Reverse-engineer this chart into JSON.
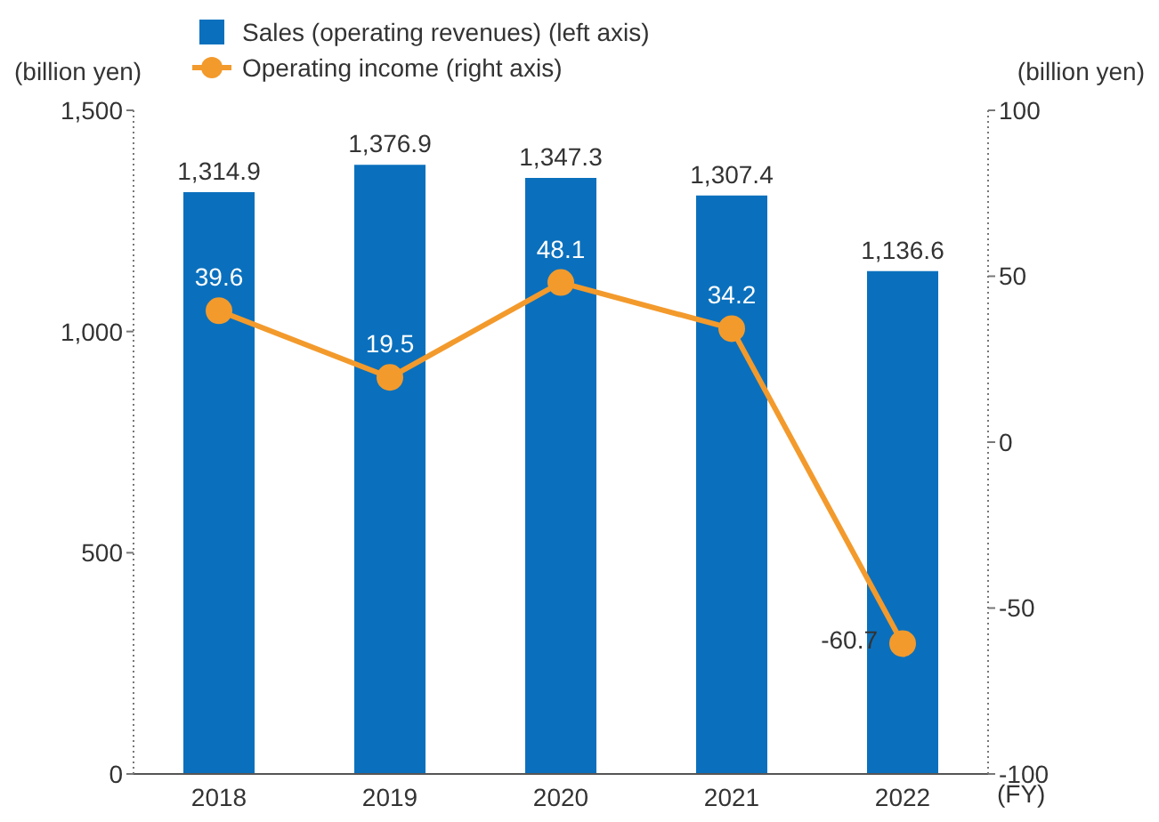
{
  "chart_data": {
    "type": "bar",
    "categories": [
      "2018",
      "2019",
      "2020",
      "2021",
      "2022"
    ],
    "ylabel": "(billion yen)",
    "y2label": "(billion yen)",
    "xlabel": "(FY)",
    "series": [
      {
        "name": "Sales (operating revenues) (left axis)",
        "color": "#0a70bd",
        "values": [
          1314.9,
          1376.9,
          1347.3,
          1307.4,
          1136.6
        ],
        "value_labels": [
          "1,314.9",
          "1,376.9",
          "1,347.3",
          "1,307.4",
          "1,136.6"
        ]
      },
      {
        "name": "Operating income (right axis)",
        "type": "line",
        "axis": "y2",
        "color": "#f39a2c",
        "values": [
          39.6,
          19.5,
          48.1,
          34.2,
          -60.7
        ],
        "value_labels": [
          "39.6",
          "19.5",
          "48.1",
          "34.2",
          "-60.7"
        ]
      }
    ],
    "ylim": [
      0,
      1500
    ],
    "yticks": [
      0,
      {
        "value": 500,
        "label": "500"
      },
      {
        "value": 1000,
        "label": "1,000"
      },
      {
        "value": 1500,
        "label": "1,500"
      }
    ],
    "y2lim": [
      -100,
      100
    ],
    "y2ticks": [
      -100,
      -50,
      0,
      50,
      100
    ],
    "legend": "top left",
    "marker": "circle",
    "line_style": "solid"
  }
}
